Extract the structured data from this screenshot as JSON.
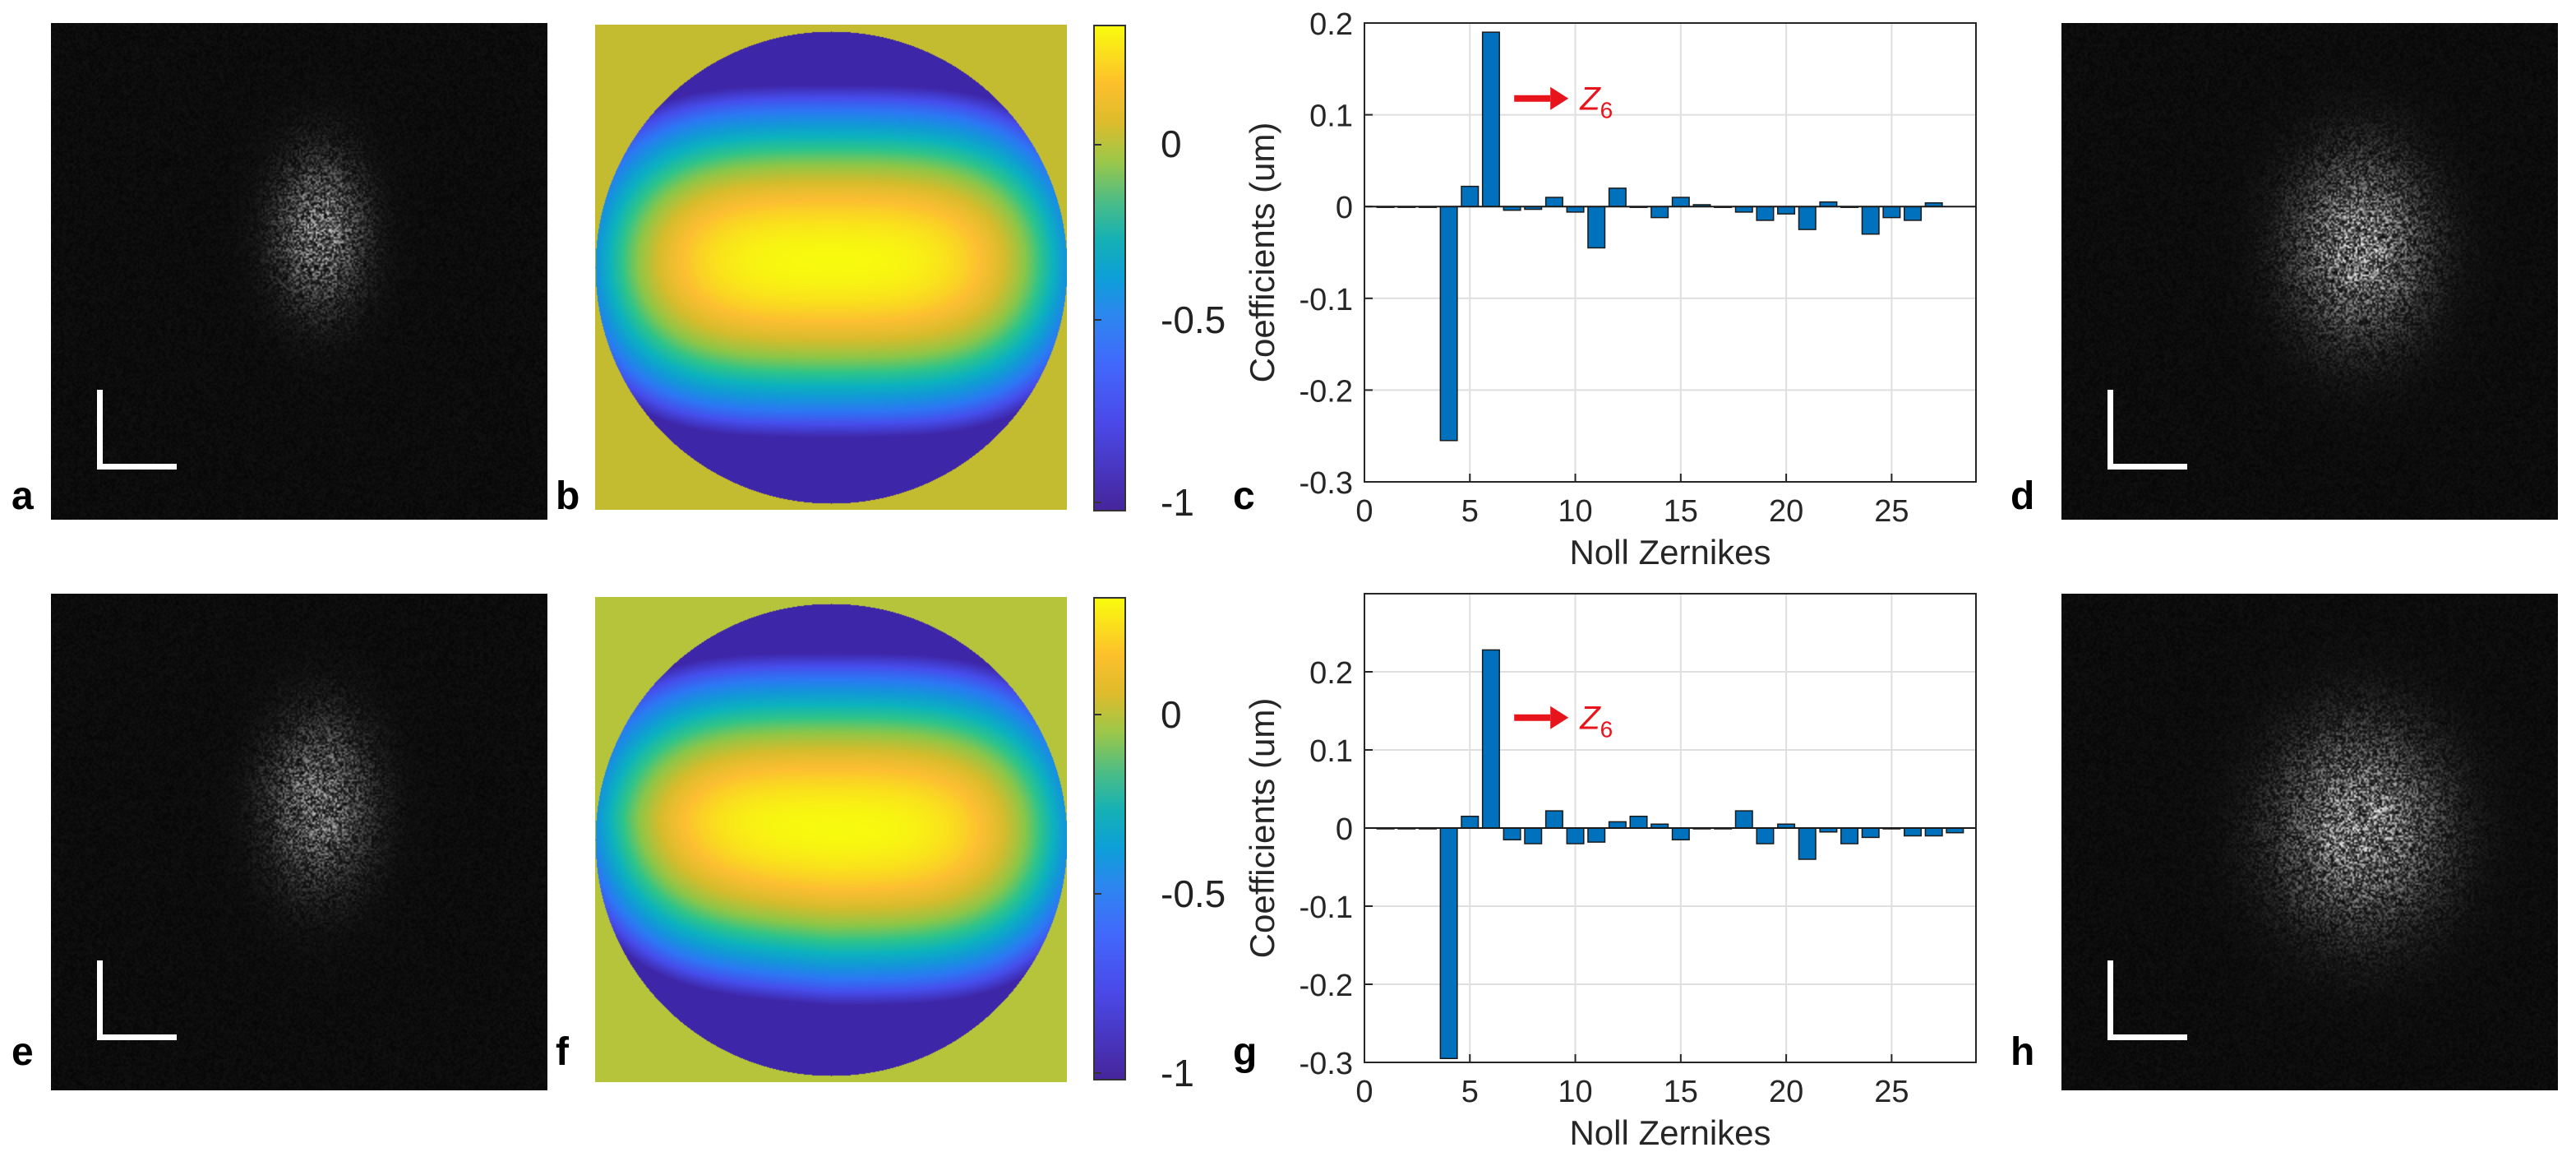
{
  "panel_letters": {
    "a": "a",
    "b": "b",
    "c": "c",
    "d": "d",
    "e": "e",
    "f": "f",
    "g": "g",
    "h": "h"
  },
  "colorbars": [
    {
      "ticks": [
        "0",
        "-0.5",
        "-1"
      ]
    },
    {
      "ticks": [
        "0",
        "-0.5",
        "-1"
      ]
    }
  ],
  "annotation": {
    "arrow_label_base": "Z",
    "arrow_label_sub": "6",
    "arrow_color": "#e8141c"
  },
  "colors": {
    "bar": "#0072bd",
    "axis": "#262626",
    "grid": "#dfdfdf"
  },
  "chart_data": [
    {
      "type": "bar",
      "panel": "c",
      "xlabel": "Noll Zernikes",
      "ylabel": "Coefficients (um)",
      "xlim": [
        0,
        29
      ],
      "ylim": [
        -0.3,
        0.2
      ],
      "xticks": [
        "0",
        "5",
        "10",
        "15",
        "20",
        "25"
      ],
      "yticks": [
        "0.2",
        "0.1",
        "0",
        "-0.1",
        "-0.2",
        "-0.3"
      ],
      "x": [
        1,
        2,
        3,
        4,
        5,
        6,
        7,
        8,
        9,
        10,
        11,
        12,
        13,
        14,
        15,
        16,
        17,
        18,
        19,
        20,
        21,
        22,
        23,
        24,
        25,
        26,
        27
      ],
      "values": [
        0,
        0,
        0,
        -0.255,
        0.022,
        0.19,
        -0.004,
        -0.003,
        0.01,
        -0.006,
        -0.045,
        0.02,
        0,
        -0.012,
        0.01,
        0.002,
        0,
        -0.006,
        -0.015,
        -0.008,
        -0.025,
        0.005,
        0,
        -0.03,
        -0.012,
        -0.015,
        0.004
      ],
      "annotation": "Z6"
    },
    {
      "type": "bar",
      "panel": "g",
      "xlabel": "Noll Zernikes",
      "ylabel": "Coefficients (um)",
      "xlim": [
        0,
        29
      ],
      "ylim": [
        -0.3,
        0.3
      ],
      "xticks": [
        "0",
        "5",
        "10",
        "15",
        "20",
        "25"
      ],
      "yticks": [
        "0.2",
        "0.1",
        "0",
        "-0.1",
        "-0.2",
        "-0.3"
      ],
      "x": [
        1,
        2,
        3,
        4,
        5,
        6,
        7,
        8,
        9,
        10,
        11,
        12,
        13,
        14,
        15,
        16,
        17,
        18,
        19,
        20,
        21,
        22,
        23,
        24,
        25,
        26,
        27,
        28
      ],
      "values": [
        0,
        0,
        0,
        -0.295,
        0.015,
        0.228,
        -0.015,
        -0.02,
        0.022,
        -0.02,
        -0.018,
        0.008,
        0.015,
        0.005,
        -0.015,
        0,
        0,
        0.022,
        -0.02,
        0.005,
        -0.04,
        -0.005,
        -0.02,
        -0.012,
        0,
        -0.01,
        -0.01,
        -0.006
      ],
      "annotation": "Z6"
    }
  ]
}
